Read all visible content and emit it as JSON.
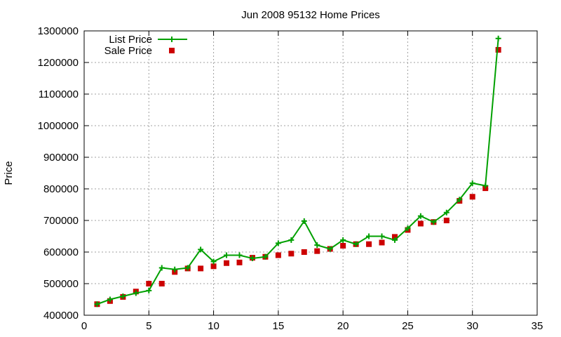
{
  "chart_data": {
    "type": "line",
    "title": "Jun 2008 95132 Home Prices",
    "xlabel": "",
    "ylabel": "Price",
    "xlim": [
      0,
      35
    ],
    "ylim": [
      400000,
      1300000
    ],
    "x_ticks": [
      0,
      5,
      10,
      15,
      20,
      25,
      30,
      35
    ],
    "y_ticks": [
      400000,
      500000,
      600000,
      700000,
      800000,
      900000,
      1000000,
      1100000,
      1200000,
      1300000
    ],
    "grid": true,
    "legend_position": "top-left",
    "series": [
      {
        "name": "List Price",
        "style": "line-with-plus-markers",
        "color": "#00a000",
        "x": [
          1,
          2,
          3,
          4,
          5,
          6,
          7,
          8,
          9,
          10,
          11,
          12,
          13,
          14,
          15,
          16,
          17,
          18,
          19,
          20,
          21,
          22,
          23,
          24,
          25,
          26,
          27,
          28,
          29,
          30,
          31,
          32
        ],
        "values": [
          435000,
          450000,
          460000,
          470000,
          478000,
          550000,
          545000,
          550000,
          608000,
          570000,
          590000,
          590000,
          580000,
          585000,
          628000,
          638000,
          698000,
          622000,
          610000,
          638000,
          625000,
          650000,
          650000,
          638000,
          675000,
          714000,
          695000,
          725000,
          766000,
          818000,
          810000,
          1276000
        ]
      },
      {
        "name": "Sale Price",
        "style": "square-markers",
        "color": "#cc0000",
        "x": [
          1,
          2,
          3,
          4,
          5,
          6,
          7,
          8,
          9,
          10,
          11,
          12,
          13,
          14,
          15,
          16,
          17,
          18,
          19,
          20,
          21,
          22,
          23,
          24,
          25,
          26,
          27,
          28,
          29,
          30,
          31,
          32
        ],
        "values": [
          435000,
          445000,
          458000,
          475000,
          500000,
          500000,
          537000,
          548000,
          548000,
          555000,
          565000,
          567000,
          582000,
          585000,
          590000,
          595000,
          600000,
          603000,
          610000,
          620000,
          625000,
          625000,
          630000,
          648000,
          670000,
          690000,
          695000,
          700000,
          762000,
          775000,
          802000,
          1240000
        ]
      }
    ]
  }
}
